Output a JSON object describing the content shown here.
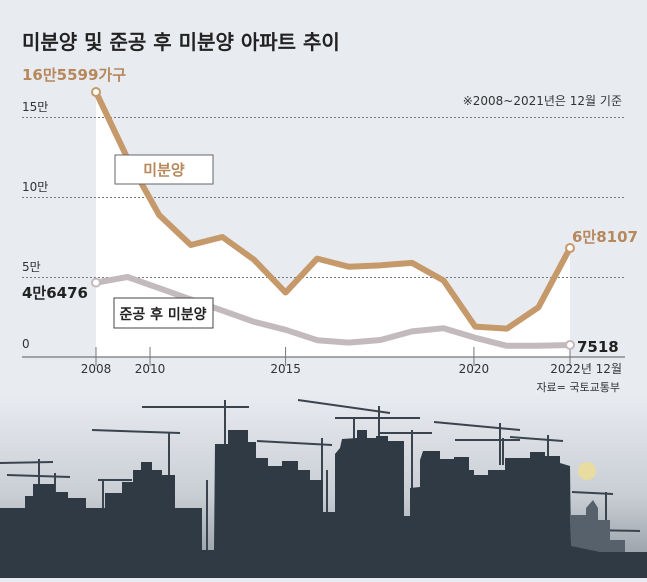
{
  "colors": {
    "background": "#e8ebf0",
    "unsold": "#c6996b",
    "unsold_label": "#b6885b",
    "post_completion": "#c3babe",
    "text": "#222222",
    "skyline": "#2f3a44",
    "moon": "#e9dca0"
  },
  "chart_data": {
    "type": "line",
    "title": "미분양 및 준공 후 미분양 아파트 추이",
    "note": "※2008~2021년은 12월 기준",
    "source": "자료= 국토교통부",
    "y_unit": "가구",
    "ylim": [
      0,
      165599
    ],
    "y_ticks": [
      {
        "value": 0,
        "label": "0"
      },
      {
        "value": 50000,
        "label": "5만"
      },
      {
        "value": 100000,
        "label": "10만"
      },
      {
        "value": 150000,
        "label": "15만"
      }
    ],
    "x_ticks": [
      "2008",
      "2010",
      "2015",
      "2020",
      "2022년 12월"
    ],
    "grid": "dashed horizontal",
    "series": [
      {
        "name": "미분양",
        "values": [
          165599,
          124000,
          88700,
          70000,
          75000,
          60800,
          40300,
          61500,
          56400,
          57300,
          58800,
          47800,
          19000,
          17700,
          31000,
          68107
        ],
        "start_label": "16만5599가구",
        "end_label": "6만8107"
      },
      {
        "name": "준공 후 미분양",
        "values": [
          46476,
          50000,
          43000,
          36000,
          29000,
          22000,
          17000,
          10500,
          9000,
          10600,
          16000,
          18000,
          12000,
          7000,
          7000,
          7518
        ],
        "start_label": "4만6476",
        "end_label": "7518"
      }
    ]
  }
}
